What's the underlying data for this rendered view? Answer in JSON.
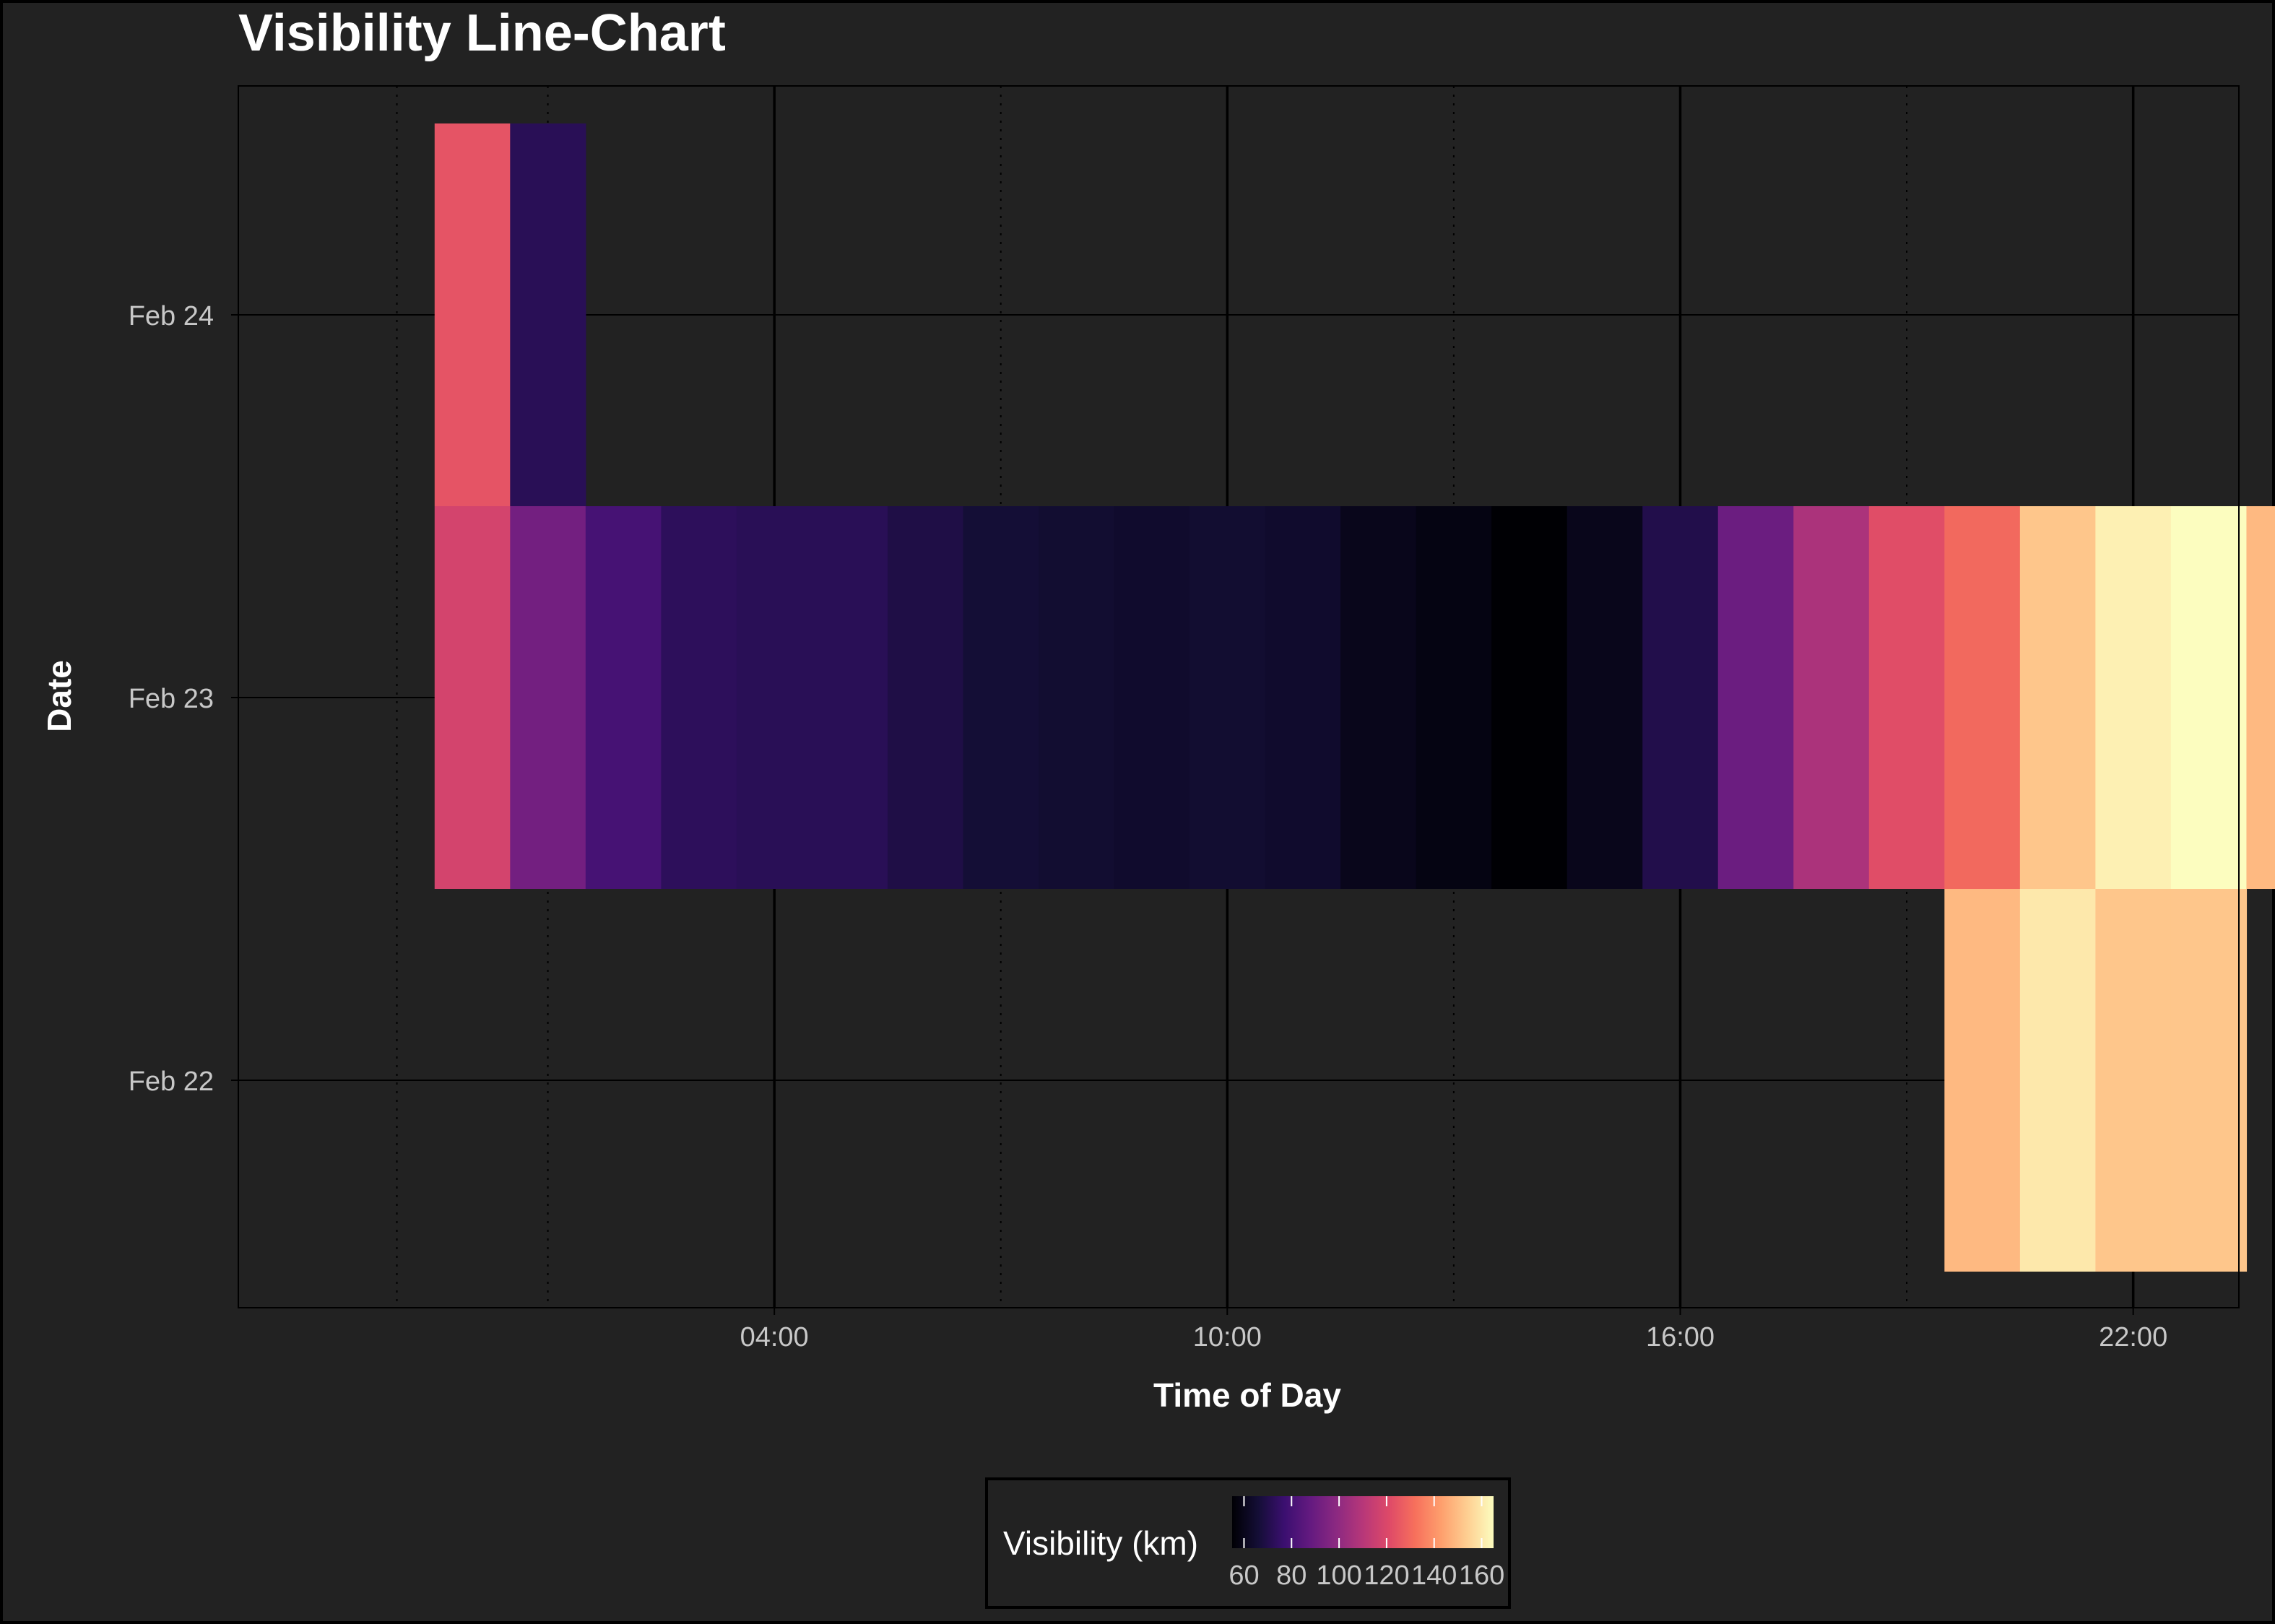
{
  "chart_data": {
    "type": "heatmap",
    "title": "Visibility Line-Chart",
    "xlabel": "Time of Day",
    "ylabel": "Date",
    "x_ticks": [
      "04:00",
      "10:00",
      "16:00",
      "22:00"
    ],
    "y_ticks": [
      "Feb 22",
      "Feb 23",
      "Feb 24"
    ],
    "x_unit": "hour of day",
    "xlim": [
      -3.1,
      23.4
    ],
    "y_categories": [
      "Feb 22",
      "Feb 23",
      "Feb 24"
    ],
    "grid": true,
    "legend": {
      "title": "Visibility (km)",
      "position": "bottom",
      "ticks": [
        "60",
        "80",
        "100",
        "120",
        "140",
        "160"
      ],
      "range": [
        55,
        165
      ],
      "palette": "magma"
    },
    "rows": [
      {
        "date": "Feb 24",
        "start_hour": 0,
        "values": [
          124,
          72
        ]
      },
      {
        "date": "Feb 23",
        "start_hour": 0,
        "values": [
          118,
          92,
          80,
          73,
          72,
          72,
          69,
          66,
          65,
          64,
          65,
          64,
          60,
          58,
          55,
          60,
          70,
          90,
          107,
          122,
          130,
          152,
          162,
          165,
          149
        ]
      },
      {
        "date": "Feb 22",
        "start_hour": 20,
        "values": [
          149,
          160,
          152,
          152
        ]
      }
    ]
  }
}
